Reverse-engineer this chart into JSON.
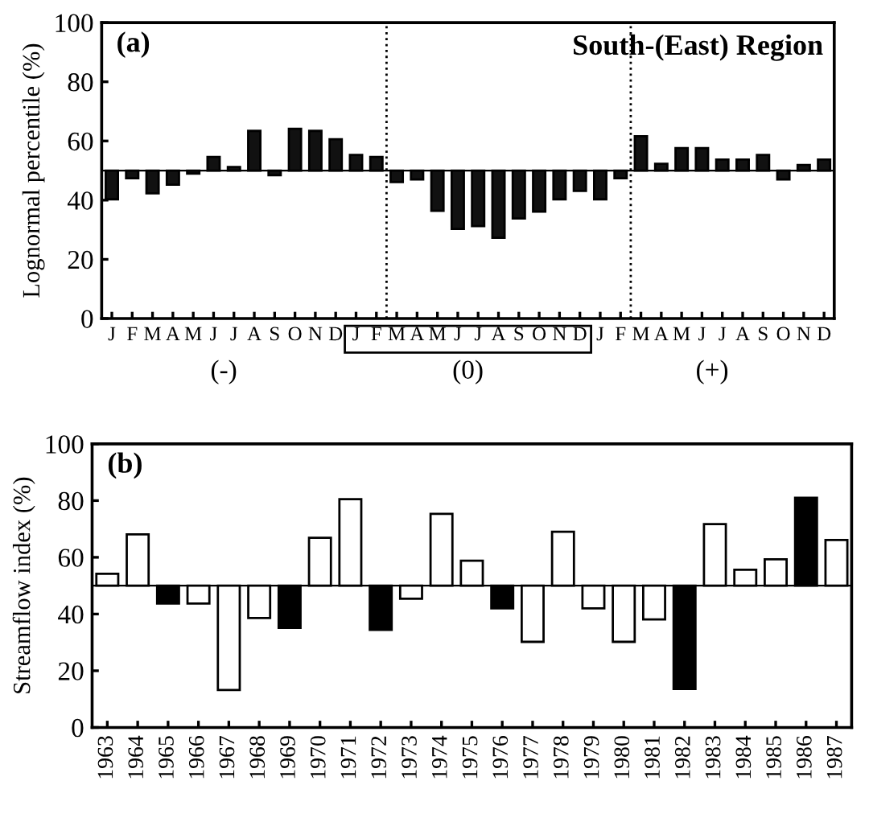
{
  "chart_data": [
    {
      "type": "bar",
      "title": "South-(East) Region",
      "ylabel": "Lognormal percentile (%)",
      "annotations": [
        "(a)",
        "(-)",
        "(0)",
        "(+)"
      ],
      "categories": [
        "J",
        "F",
        "M",
        "A",
        "M",
        "J",
        "J",
        "A",
        "S",
        "O",
        "N",
        "D",
        "J",
        "F",
        "M",
        "A",
        "M",
        "J",
        "J",
        "A",
        "S",
        "O",
        "N",
        "D",
        "J",
        "F",
        "M",
        "A",
        "M",
        "J",
        "J",
        "A",
        "S",
        "O",
        "N",
        "D"
      ],
      "values": [
        -9.7,
        -2.6,
        -7.7,
        -4.8,
        -1,
        4.6,
        1.2,
        13.4,
        -1.6,
        14.1,
        13.4,
        10.6,
        5.3,
        4.6,
        -3.9,
        -3,
        -13.6,
        -19.7,
        -18.8,
        -22.7,
        -16.2,
        -13.9,
        -9.7,
        -6.9,
        -9.7,
        -2.6,
        11.6,
        2.3,
        7.6,
        7.6,
        3.7,
        3.7,
        5.3,
        -3,
        1.9,
        3.7
      ],
      "base": [
        50,
        50,
        50,
        50,
        50,
        50,
        50,
        50,
        50,
        50,
        50,
        50,
        50,
        50,
        50,
        50,
        50,
        50,
        50,
        50,
        50,
        50,
        50,
        50,
        50,
        50,
        50,
        50,
        50,
        50,
        50,
        50,
        50,
        50,
        50,
        50
      ],
      "color": "#111111",
      "ylim": [
        0,
        100
      ],
      "yticks": [
        0,
        20,
        40,
        60,
        80,
        100
      ],
      "ref_lines": [
        {
          "axis": "y",
          "value": 50,
          "line_style": "solid"
        }
      ]
    },
    {
      "type": "bar",
      "ylabel": "Streamflow index (%)",
      "annotations": [
        "(b)"
      ],
      "categories": [
        "1963",
        "1964",
        "1965",
        "1966",
        "1967",
        "1968",
        "1969",
        "1970",
        "1971",
        "1972",
        "1973",
        "1974",
        "1975",
        "1976",
        "1977",
        "1978",
        "1979",
        "1980",
        "1981",
        "1982",
        "1983",
        "1984",
        "1985",
        "1986",
        "1987"
      ],
      "values": [
        4.2,
        18.1,
        -6.3,
        -6.3,
        -36.8,
        -11.4,
        -14.9,
        16.9,
        30.5,
        -15.6,
        -4.6,
        25.3,
        8.8,
        -8,
        -19.8,
        19,
        -8,
        -19.8,
        -11.9,
        -36.4,
        21.7,
        5.6,
        9.3,
        31,
        16.1
      ],
      "base": [
        50,
        50,
        50,
        50,
        50,
        50,
        50,
        50,
        50,
        50,
        50,
        50,
        50,
        50,
        50,
        50,
        50,
        50,
        50,
        50,
        50,
        50,
        50,
        50,
        50
      ],
      "colors": [
        "#ffffff",
        "#ffffff",
        "#000000",
        "#ffffff",
        "#ffffff",
        "#ffffff",
        "#000000",
        "#ffffff",
        "#ffffff",
        "#000000",
        "#ffffff",
        "#ffffff",
        "#ffffff",
        "#000000",
        "#ffffff",
        "#ffffff",
        "#ffffff",
        "#ffffff",
        "#ffffff",
        "#000000",
        "#ffffff",
        "#ffffff",
        "#ffffff",
        "#000000",
        "#ffffff"
      ],
      "ylim": [
        0,
        100
      ],
      "yticks": [
        0,
        20,
        40,
        60,
        80,
        100
      ],
      "ref_lines": [
        {
          "axis": "y",
          "value": 50,
          "line_style": "solid"
        }
      ]
    }
  ]
}
